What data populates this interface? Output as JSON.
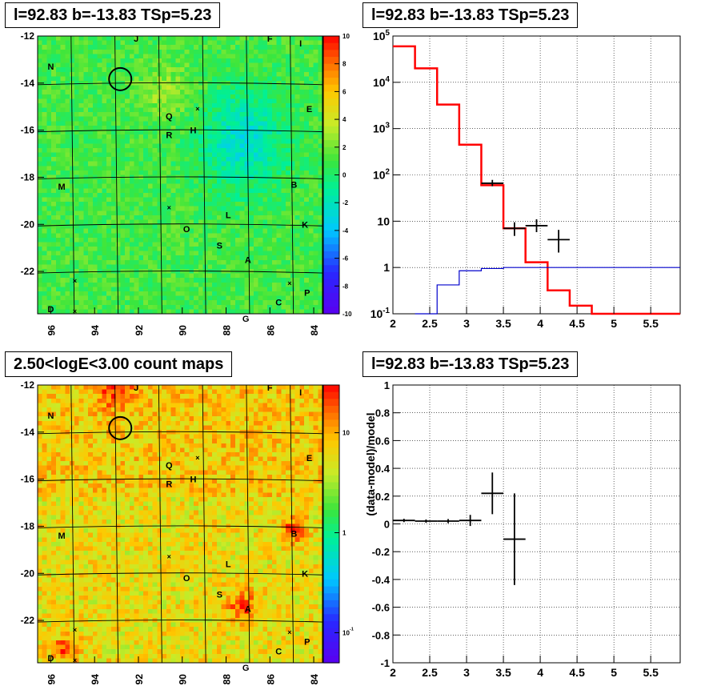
{
  "panels": {
    "tl_title": "l=92.83 b=-13.83 TSp=5.23",
    "tr_title": "l=92.83 b=-13.83 TSp=5.23",
    "bl_title": "2.50<logE<3.00 count maps",
    "br_title": "l=92.83 b=-13.83 TSp=5.23"
  },
  "colors": {
    "model_histogram": "#ff0000",
    "secondary_histogram": "#0000cc",
    "data_points": "#000000"
  },
  "chart_data": [
    {
      "type": "heatmap",
      "panel": "top-left",
      "title": "l=92.83 b=-13.83 TSp=5.23",
      "x_ticks": [
        "96",
        "94",
        "92",
        "90",
        "88",
        "86",
        "84"
      ],
      "y_ticks": [
        "-12",
        "-14",
        "-16",
        "-18",
        "-20",
        "-22"
      ],
      "xlim": [
        96.6,
        83.6
      ],
      "ylim": [
        -23.8,
        -12
      ],
      "colorbar": {
        "scale": "linear",
        "range": [
          -10,
          10
        ],
        "ticks": [
          "10",
          "8",
          "6",
          "4",
          "2",
          "0",
          "-2",
          "-4",
          "-6",
          "-8",
          "-10"
        ]
      },
      "source_labels": [
        {
          "label": "J",
          "l": 92.1,
          "b": -12.1
        },
        {
          "label": "F",
          "l": 86.0,
          "b": -12.1
        },
        {
          "label": "I",
          "l": 84.6,
          "b": -12.3
        },
        {
          "label": "N",
          "l": 96.0,
          "b": -13.3
        },
        {
          "label": "E",
          "l": 84.2,
          "b": -15.1
        },
        {
          "label": "Q",
          "l": 90.6,
          "b": -15.4
        },
        {
          "label": "H",
          "l": 89.5,
          "b": -16.0
        },
        {
          "label": "R",
          "l": 90.6,
          "b": -16.2
        },
        {
          "label": "M",
          "l": 95.5,
          "b": -18.4
        },
        {
          "label": "B",
          "l": 84.9,
          "b": -18.3
        },
        {
          "label": "L",
          "l": 87.9,
          "b": -19.6
        },
        {
          "label": "K",
          "l": 84.4,
          "b": -20.0
        },
        {
          "label": "O",
          "l": 89.8,
          "b": -20.2
        },
        {
          "label": "S",
          "l": 88.3,
          "b": -20.9
        },
        {
          "label": "A",
          "l": 87.0,
          "b": -21.5
        },
        {
          "label": "P",
          "l": 84.3,
          "b": -22.9
        },
        {
          "label": "C",
          "l": 85.6,
          "b": -23.3
        },
        {
          "label": "D",
          "l": 96.0,
          "b": -23.6
        },
        {
          "label": "G",
          "l": 87.1,
          "b": -24.0
        }
      ]
    },
    {
      "type": "line",
      "panel": "top-right",
      "title": "l=92.83 b=-13.83 TSp=5.23",
      "x_ticks": [
        "2",
        "2.5",
        "3",
        "3.5",
        "4",
        "4.5",
        "5",
        "5.5"
      ],
      "y_ticks": [
        "10^-1",
        "1",
        "10",
        "10^2",
        "10^3",
        "10^4",
        "10^5"
      ],
      "xlim": [
        2.0,
        5.9
      ],
      "ylim": [
        0.1,
        100000
      ],
      "y_scale": "log",
      "grid": true,
      "series": [
        {
          "style": "step",
          "color": "red",
          "edges": [
            2.0,
            2.3,
            2.6,
            2.9,
            3.2,
            3.5,
            3.8,
            4.1,
            4.4,
            4.7,
            5.0,
            5.9
          ],
          "values": [
            60000,
            20000,
            3300,
            450,
            60,
            7,
            1.3,
            0.32,
            0.15,
            0.1,
            0.1
          ]
        },
        {
          "style": "step",
          "color": "blue",
          "edges": [
            2.3,
            2.6,
            2.9,
            3.2,
            3.5,
            5.9
          ],
          "values": [
            0.1,
            0.42,
            0.85,
            0.95,
            1.0
          ]
        },
        {
          "style": "errorbar",
          "color": "black",
          "x": [
            3.35,
            3.65,
            3.95,
            4.25
          ],
          "y": [
            66,
            7,
            8,
            4
          ],
          "xerr": [
            0.15,
            0.15,
            0.15,
            0.15
          ],
          "ylo": [
            57,
            4.8,
            5.8,
            2.1
          ],
          "yhi": [
            78,
            9.5,
            11,
            6.5
          ]
        }
      ]
    },
    {
      "type": "heatmap",
      "panel": "bottom-left",
      "title": "2.50<logE<3.00 count maps",
      "x_ticks": [
        "96",
        "94",
        "92",
        "90",
        "88",
        "86",
        "84"
      ],
      "y_ticks": [
        "-12",
        "-14",
        "-16",
        "-18",
        "-20",
        "-22"
      ],
      "xlim": [
        96.6,
        83.6
      ],
      "ylim": [
        -23.8,
        -12
      ],
      "colorbar": {
        "scale": "log",
        "range": [
          0.05,
          30
        ],
        "ticks": [
          "10",
          "1",
          "10^-1"
        ]
      },
      "source_labels": [
        {
          "label": "J",
          "l": 92.1,
          "b": -12.1
        },
        {
          "label": "F",
          "l": 86.0,
          "b": -12.1
        },
        {
          "label": "I",
          "l": 84.6,
          "b": -12.3
        },
        {
          "label": "N",
          "l": 96.0,
          "b": -13.3
        },
        {
          "label": "E",
          "l": 84.2,
          "b": -15.1
        },
        {
          "label": "Q",
          "l": 90.6,
          "b": -15.4
        },
        {
          "label": "H",
          "l": 89.5,
          "b": -16.0
        },
        {
          "label": "R",
          "l": 90.6,
          "b": -16.2
        },
        {
          "label": "M",
          "l": 95.5,
          "b": -18.4
        },
        {
          "label": "B",
          "l": 84.9,
          "b": -18.3
        },
        {
          "label": "L",
          "l": 87.9,
          "b": -19.6
        },
        {
          "label": "K",
          "l": 84.4,
          "b": -20.0
        },
        {
          "label": "O",
          "l": 89.8,
          "b": -20.2
        },
        {
          "label": "S",
          "l": 88.3,
          "b": -20.9
        },
        {
          "label": "A",
          "l": 87.0,
          "b": -21.5
        },
        {
          "label": "P",
          "l": 84.3,
          "b": -22.9
        },
        {
          "label": "C",
          "l": 85.6,
          "b": -23.3
        },
        {
          "label": "D",
          "l": 96.0,
          "b": -23.6
        },
        {
          "label": "G",
          "l": 87.1,
          "b": -24.0
        }
      ]
    },
    {
      "type": "scatter",
      "panel": "bottom-right",
      "title": "l=92.83 b=-13.83 TSp=5.23",
      "ylabel": "(data-model)/model",
      "x_ticks": [
        "2",
        "2.5",
        "3",
        "3.5",
        "4",
        "4.5",
        "5",
        "5.5"
      ],
      "y_ticks": [
        "1",
        "0.8",
        "0.6",
        "0.4",
        "0.2",
        "0",
        "-0.2",
        "-0.4",
        "-0.6",
        "-0.8",
        "-1"
      ],
      "xlim": [
        2.0,
        5.9
      ],
      "ylim": [
        -1,
        1
      ],
      "grid": true,
      "series": [
        {
          "style": "errorbar",
          "color": "black",
          "x": [
            2.15,
            2.45,
            2.75,
            3.05,
            3.35,
            3.65
          ],
          "y": [
            0.025,
            0.02,
            0.02,
            0.025,
            0.22,
            -0.11
          ],
          "xerr": [
            0.15,
            0.15,
            0.15,
            0.15,
            0.15,
            0.15
          ],
          "yerr": [
            0.012,
            0.012,
            0.015,
            0.04,
            0.15,
            0.33
          ]
        }
      ]
    }
  ]
}
